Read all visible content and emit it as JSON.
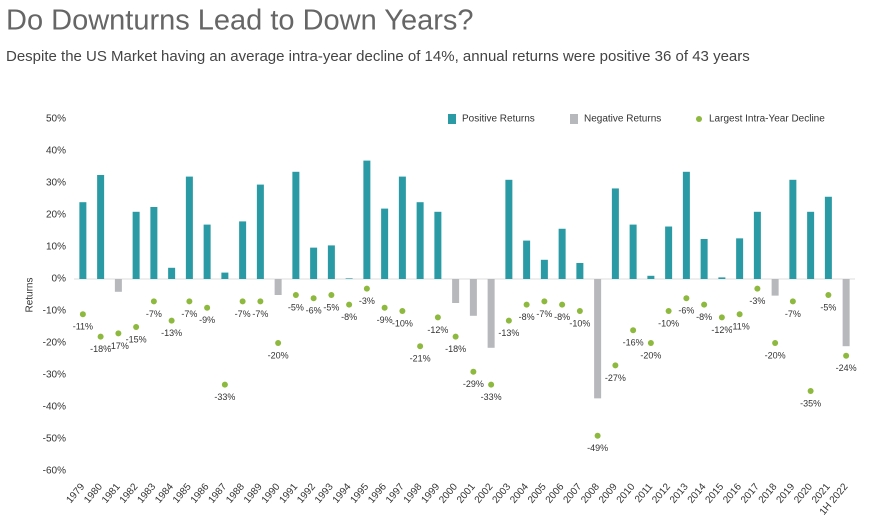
{
  "chart_data": {
    "type": "bar",
    "title": "Do Downturns Lead to Down Years?",
    "subtitle": "Despite the US Market having an average intra-year decline of 14%, annual returns were positive 36 of 43 years",
    "y_label": "Returns",
    "categories": [
      "1979",
      "1980",
      "1981",
      "1982",
      "1983",
      "1984",
      "1985",
      "1986",
      "1987",
      "1988",
      "1989",
      "1990",
      "1991",
      "1992",
      "1993",
      "1994",
      "1995",
      "1996",
      "1997",
      "1998",
      "1999",
      "2000",
      "2001",
      "2002",
      "2003",
      "2004",
      "2005",
      "2006",
      "2007",
      "2008",
      "2009",
      "2010",
      "2011",
      "2012",
      "2013",
      "2014",
      "2015",
      "2016",
      "2017",
      "2018",
      "2019",
      "2020",
      "2021",
      "1H 2022"
    ],
    "series": [
      {
        "name": "Positive Returns",
        "type": "bar",
        "color": "#2a9aa5",
        "values": [
          24,
          32.5,
          null,
          21,
          22.5,
          3.5,
          32,
          17,
          2,
          18,
          29.5,
          null,
          33.5,
          9.8,
          10.5,
          0.2,
          37,
          22,
          32,
          24,
          21,
          null,
          null,
          null,
          31,
          12,
          6,
          15.7,
          5,
          null,
          28.3,
          17,
          1,
          16.4,
          33.5,
          12.5,
          0.5,
          12.7,
          21,
          null,
          31,
          21,
          25.7,
          null
        ]
      },
      {
        "name": "Negative Returns",
        "type": "bar",
        "color": "#b7b8bc",
        "values": [
          null,
          null,
          -4,
          null,
          null,
          null,
          null,
          null,
          null,
          null,
          null,
          -5,
          null,
          null,
          null,
          null,
          null,
          null,
          null,
          null,
          null,
          -7.5,
          -11.5,
          -21.5,
          null,
          null,
          null,
          null,
          null,
          -37.3,
          null,
          null,
          null,
          null,
          null,
          null,
          null,
          null,
          null,
          -5.2,
          null,
          null,
          null,
          -21
        ]
      },
      {
        "name": "Largest Intra-Year Decline",
        "type": "scatter",
        "color": "#8db93e",
        "values": [
          -11,
          -18,
          -17,
          -15,
          -7,
          -13,
          -7,
          -9,
          -33,
          -7,
          -7,
          -20,
          -5,
          -6,
          -5,
          -8,
          -3,
          -9,
          -10,
          -21,
          -12,
          -18,
          -29,
          -33,
          -13,
          -8,
          -7,
          -8,
          -10,
          -49,
          -27,
          -16,
          -20,
          -10,
          -6,
          -8,
          -12,
          -11,
          -3,
          -20,
          -7,
          -35,
          -5,
          -24
        ],
        "value_labels": [
          "-11%",
          "-18%",
          "-17%",
          "-15%",
          "-7%",
          "-13%",
          "-7%",
          "-9%",
          "-33%",
          "-7%",
          "-7%",
          "-20%",
          "-5%",
          "-6%",
          "-5%",
          "-8%",
          "-3%",
          "-9%",
          "-10%",
          "-21%",
          "-12%",
          "-18%",
          "-29%",
          "-33%",
          "-13%",
          "-8%",
          "-7%",
          "-8%",
          "-10%",
          "-49%",
          "-27%",
          "-16%",
          "-20%",
          "-10%",
          "-6%",
          "-8%",
          "-12%",
          "-11%",
          "-3%",
          "-20%",
          "-7%",
          "-35%",
          "-5%",
          "-24%"
        ]
      }
    ],
    "ylim": [
      -60,
      50
    ],
    "yticks": [
      {
        "value": -60,
        "label": "-60%"
      },
      {
        "value": -50,
        "label": "-50%"
      },
      {
        "value": -40,
        "label": "-40%"
      },
      {
        "value": -30,
        "label": "-30%"
      },
      {
        "value": -20,
        "label": "-20%"
      },
      {
        "value": -10,
        "label": "-10%"
      },
      {
        "value": 0,
        "label": "0%"
      },
      {
        "value": 10,
        "label": "10%"
      },
      {
        "value": 20,
        "label": "20%"
      },
      {
        "value": 30,
        "label": "30%"
      },
      {
        "value": 40,
        "label": "40%"
      },
      {
        "value": 50,
        "label": "50%"
      }
    ],
    "legend": "top-right"
  }
}
